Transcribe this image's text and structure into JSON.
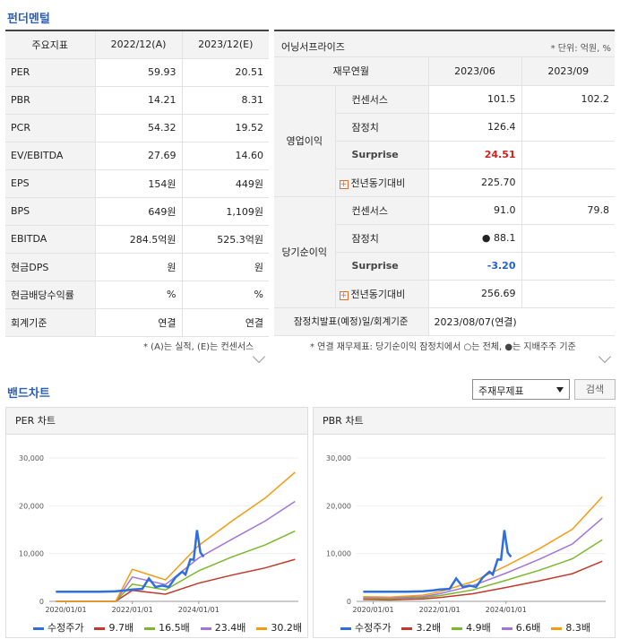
{
  "fundamentals": {
    "title": "펀더멘털",
    "left": {
      "headers": [
        "주요지표",
        "2022/12(A)",
        "2023/12(E)"
      ],
      "rows": [
        [
          "PER",
          "59.93",
          "20.51"
        ],
        [
          "PBR",
          "14.21",
          "8.31"
        ],
        [
          "PCR",
          "54.32",
          "19.52"
        ],
        [
          "EV/EBITDA",
          "27.69",
          "14.60"
        ],
        [
          "EPS",
          "154원",
          "449원"
        ],
        [
          "BPS",
          "649원",
          "1,109원"
        ],
        [
          "EBITDA",
          "284.5억원",
          "525.3억원"
        ],
        [
          "현금DPS",
          "원",
          "원"
        ],
        [
          "현금배당수익률",
          "%",
          "%"
        ],
        [
          "회계기준",
          "연결",
          "연결"
        ]
      ],
      "note": "* (A)는 실적, (E)는 컨센서스"
    },
    "right": {
      "title": "어닝서프라이즈",
      "unit": "* 단위: 억원, %",
      "headers": [
        "재무연월",
        "2023/06",
        "2023/09"
      ],
      "op": {
        "group": "영업이익",
        "consensus_label": "컨센서스",
        "consensus": [
          "101.5",
          "102.2"
        ],
        "provisional_label": "잠정치",
        "provisional": "126.4",
        "surprise_label": "Surprise",
        "surprise": "24.51",
        "yoy_label": "전년동기대비",
        "yoy": "225.70"
      },
      "net": {
        "group": "당기순이익",
        "consensus_label": "컨센서스",
        "consensus": [
          "91.0",
          "79.8"
        ],
        "provisional_label": "잠정치",
        "provisional": "● 88.1",
        "surprise_label": "Surprise",
        "surprise": "-3.20",
        "yoy_label": "전년동기대비",
        "yoy": "256.69"
      },
      "release_label": "잠정치발표(예정)일/회계기준",
      "release_value": "2023/08/07(연결)",
      "note": "* 연결 재무제표: 당기순이익 잠정치에서 ○는 전체, ●는 지배주주 기준"
    }
  },
  "band": {
    "title": "밴드차트",
    "select_value": "주재무제표",
    "search_label": "검색"
  },
  "chart_data": [
    {
      "type": "line",
      "title": "PER 차트",
      "x_ticks": [
        "2020/01/01",
        "2022/01/01",
        "2024/01/01"
      ],
      "y_ticks": [
        "30,000",
        "20,000",
        "10,000",
        "0"
      ],
      "ylim": [
        0,
        30000
      ],
      "x_range": [
        2019.5,
        2027.0
      ],
      "series": [
        {
          "name": "수정주가",
          "color": "#2f6fdc",
          "points": [
            [
              2019.7,
              2000
            ],
            [
              2020.0,
              2000
            ],
            [
              2020.5,
              2000
            ],
            [
              2021.0,
              2000
            ],
            [
              2021.5,
              2100
            ],
            [
              2021.8,
              2300
            ],
            [
              2022.0,
              2500
            ],
            [
              2022.3,
              2600
            ],
            [
              2022.5,
              4800
            ],
            [
              2022.7,
              3000
            ],
            [
              2022.9,
              3300
            ],
            [
              2023.1,
              3000
            ],
            [
              2023.3,
              5000
            ],
            [
              2023.5,
              6200
            ],
            [
              2023.6,
              5600
            ],
            [
              2023.75,
              8800
            ],
            [
              2023.85,
              8700
            ],
            [
              2023.95,
              14900
            ],
            [
              2024.05,
              10200
            ],
            [
              2024.15,
              9300
            ]
          ]
        },
        {
          "name": "9.7배",
          "color": "#c0392b",
          "points": [
            [
              2019.7,
              0
            ],
            [
              2021.5,
              0
            ],
            [
              2022.0,
              2300
            ],
            [
              2023.0,
              1500
            ],
            [
              2024.0,
              3800
            ],
            [
              2025.0,
              5500
            ],
            [
              2026.0,
              7000
            ],
            [
              2026.9,
              8800
            ]
          ]
        },
        {
          "name": "16.5배",
          "color": "#7ab82e",
          "points": [
            [
              2019.7,
              0
            ],
            [
              2021.5,
              0
            ],
            [
              2022.0,
              3600
            ],
            [
              2023.0,
              2400
            ],
            [
              2024.0,
              6400
            ],
            [
              2025.0,
              9300
            ],
            [
              2026.0,
              11800
            ],
            [
              2026.9,
              14700
            ]
          ]
        },
        {
          "name": "23.4배",
          "color": "#a374d6",
          "points": [
            [
              2019.7,
              0
            ],
            [
              2021.5,
              0
            ],
            [
              2022.0,
              5100
            ],
            [
              2023.0,
              3500
            ],
            [
              2024.0,
              9100
            ],
            [
              2025.0,
              13000
            ],
            [
              2026.0,
              16800
            ],
            [
              2026.9,
              20900
            ]
          ]
        },
        {
          "name": "30.2배",
          "color": "#f39c12",
          "points": [
            [
              2019.7,
              0
            ],
            [
              2021.5,
              0
            ],
            [
              2022.0,
              6700
            ],
            [
              2023.0,
              4500
            ],
            [
              2024.0,
              11700
            ],
            [
              2025.0,
              16800
            ],
            [
              2026.0,
              21600
            ],
            [
              2026.9,
              27000
            ]
          ]
        }
      ]
    },
    {
      "type": "line",
      "title": "PBR 차트",
      "x_ticks": [
        "2020/01/01",
        "2022/01/01",
        "2024/01/01"
      ],
      "y_ticks": [
        "30,000",
        "20,000",
        "10,000",
        "0"
      ],
      "ylim": [
        0,
        30000
      ],
      "x_range": [
        2019.5,
        2027.0
      ],
      "series": [
        {
          "name": "수정주가",
          "color": "#2f6fdc",
          "points": [
            [
              2019.7,
              2000
            ],
            [
              2020.0,
              2000
            ],
            [
              2020.5,
              2000
            ],
            [
              2021.0,
              2000
            ],
            [
              2021.5,
              2100
            ],
            [
              2021.8,
              2300
            ],
            [
              2022.0,
              2500
            ],
            [
              2022.3,
              2600
            ],
            [
              2022.5,
              4800
            ],
            [
              2022.7,
              3000
            ],
            [
              2022.9,
              3300
            ],
            [
              2023.1,
              3000
            ],
            [
              2023.3,
              5000
            ],
            [
              2023.5,
              6200
            ],
            [
              2023.6,
              5600
            ],
            [
              2023.75,
              8800
            ],
            [
              2023.85,
              8700
            ],
            [
              2023.95,
              14900
            ],
            [
              2024.05,
              10200
            ],
            [
              2024.15,
              9300
            ]
          ]
        },
        {
          "name": "3.2배",
          "color": "#c0392b",
          "points": [
            [
              2019.7,
              400
            ],
            [
              2020.5,
              300
            ],
            [
              2021.5,
              500
            ],
            [
              2022.0,
              800
            ],
            [
              2023.0,
              1600
            ],
            [
              2024.0,
              2900
            ],
            [
              2025.0,
              4300
            ],
            [
              2026.0,
              5800
            ],
            [
              2026.9,
              8400
            ]
          ]
        },
        {
          "name": "4.9배",
          "color": "#7ab82e",
          "points": [
            [
              2019.7,
              600
            ],
            [
              2020.5,
              500
            ],
            [
              2021.5,
              800
            ],
            [
              2022.0,
              1200
            ],
            [
              2023.0,
              2400
            ],
            [
              2024.0,
              4400
            ],
            [
              2025.0,
              6500
            ],
            [
              2026.0,
              8900
            ],
            [
              2026.9,
              12900
            ]
          ]
        },
        {
          "name": "6.6배",
          "color": "#a374d6",
          "points": [
            [
              2019.7,
              800
            ],
            [
              2020.5,
              700
            ],
            [
              2021.5,
              1000
            ],
            [
              2022.0,
              1600
            ],
            [
              2023.0,
              3300
            ],
            [
              2024.0,
              5900
            ],
            [
              2025.0,
              8800
            ],
            [
              2026.0,
              12000
            ],
            [
              2026.9,
              17400
            ]
          ]
        },
        {
          "name": "8.3배",
          "color": "#f39c12",
          "points": [
            [
              2019.7,
              1000
            ],
            [
              2020.5,
              900
            ],
            [
              2021.5,
              1300
            ],
            [
              2022.0,
              2000
            ],
            [
              2023.0,
              4100
            ],
            [
              2024.0,
              7400
            ],
            [
              2025.0,
              11000
            ],
            [
              2026.0,
              15100
            ],
            [
              2026.9,
              21900
            ]
          ]
        }
      ]
    }
  ]
}
